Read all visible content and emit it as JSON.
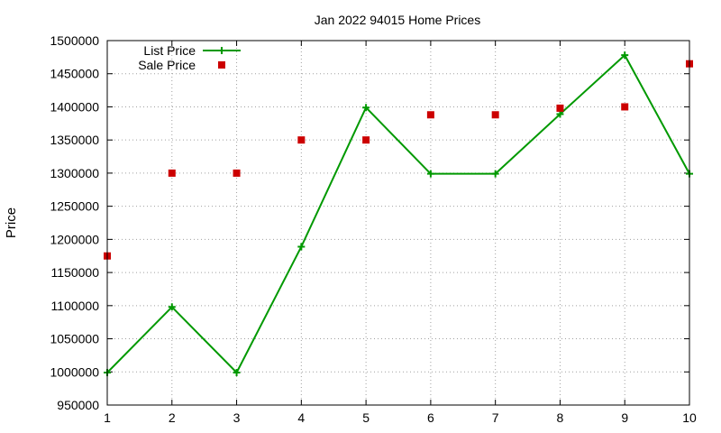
{
  "chart_data": {
    "type": "line",
    "title": "Jan 2022 94015 Home Prices",
    "xlabel": "",
    "ylabel": "Price",
    "xlim": [
      1,
      10
    ],
    "ylim": [
      950000,
      1500000
    ],
    "x_ticks": [
      1,
      2,
      3,
      4,
      5,
      6,
      7,
      8,
      9,
      10
    ],
    "y_ticks": [
      950000,
      1000000,
      1050000,
      1100000,
      1150000,
      1200000,
      1250000,
      1300000,
      1350000,
      1400000,
      1450000,
      1500000
    ],
    "grid": true,
    "legend_position": "top-left",
    "series": [
      {
        "name": "List Price",
        "style": "line-with-plus-markers",
        "color": "#009900",
        "x": [
          1,
          2,
          3,
          4,
          5,
          6,
          7,
          8,
          9,
          10
        ],
        "y": [
          999000,
          1098000,
          999000,
          1189000,
          1399000,
          1299000,
          1299000,
          1389000,
          1478000,
          1299000
        ]
      },
      {
        "name": "Sale Price",
        "style": "square-points",
        "color": "#cc0000",
        "x": [
          1,
          2,
          3,
          4,
          5,
          6,
          7,
          8,
          9,
          10
        ],
        "y": [
          1175000,
          1300000,
          1300000,
          1350000,
          1350000,
          1388000,
          1388000,
          1398000,
          1400000,
          1465000
        ]
      }
    ]
  }
}
